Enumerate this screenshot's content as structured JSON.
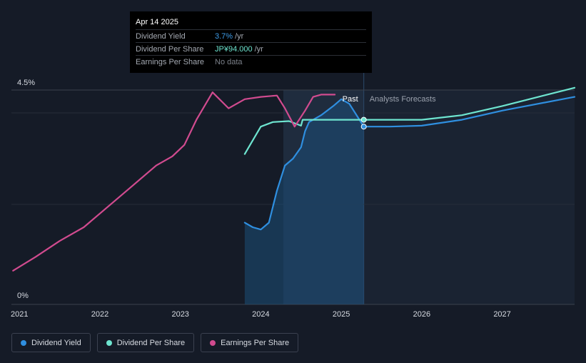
{
  "tooltip": {
    "date": "Apr 14 2025",
    "rows": [
      {
        "label": "Dividend Yield",
        "value": "3.7%",
        "unit": "/yr",
        "color": "#3e9ce8"
      },
      {
        "label": "Dividend Per Share",
        "value": "JP¥94.000",
        "unit": "/yr",
        "color": "#6ee5d0"
      },
      {
        "label": "Earnings Per Share",
        "value": "No data",
        "unit": "",
        "color": "#7b8089"
      }
    ]
  },
  "legend": [
    {
      "label": "Dividend Yield",
      "color": "#2f8fe0",
      "icon": "dividend-yield-dot-icon"
    },
    {
      "label": "Dividend Per Share",
      "color": "#6ee5d0",
      "icon": "dividend-per-share-dot-icon"
    },
    {
      "label": "Earnings Per Share",
      "color": "#d14b8f",
      "icon": "earnings-per-share-dot-icon"
    }
  ],
  "chart_data": {
    "type": "line",
    "y_ticks": [
      "4.5%",
      "0%"
    ],
    "ylim": [
      0,
      4.5
    ],
    "xlim": [
      2020.9,
      2027.9
    ],
    "x_ticks": [
      "2021",
      "2022",
      "2023",
      "2024",
      "2025",
      "2026",
      "2027"
    ],
    "regions": {
      "past_label": "Past",
      "forecast_label": "Analysts Forecasts",
      "split_x": 2025.28,
      "highlight_start": 2024.28
    },
    "grid": true,
    "series": [
      {
        "name": "Dividend Yield",
        "color": "#2f8fe0",
        "area": true,
        "points": [
          [
            2023.8,
            1.6
          ],
          [
            2023.9,
            1.5
          ],
          [
            2024.0,
            1.45
          ],
          [
            2024.1,
            1.6
          ],
          [
            2024.2,
            2.3
          ],
          [
            2024.3,
            2.85
          ],
          [
            2024.4,
            3.0
          ],
          [
            2024.5,
            3.25
          ],
          [
            2024.55,
            3.6
          ],
          [
            2024.6,
            3.8
          ],
          [
            2024.75,
            3.95
          ],
          [
            2024.9,
            4.15
          ],
          [
            2025.0,
            4.3
          ],
          [
            2025.1,
            4.2
          ],
          [
            2025.28,
            3.7
          ],
          [
            2025.6,
            3.7
          ],
          [
            2026.0,
            3.72
          ],
          [
            2026.5,
            3.85
          ],
          [
            2027.0,
            4.05
          ],
          [
            2027.9,
            4.35
          ]
        ]
      },
      {
        "name": "Dividend Per Share",
        "color": "#6ee5d0",
        "points": [
          [
            2023.8,
            3.1
          ],
          [
            2023.9,
            3.4
          ],
          [
            2024.0,
            3.7
          ],
          [
            2024.15,
            3.8
          ],
          [
            2024.35,
            3.82
          ],
          [
            2024.5,
            3.72
          ],
          [
            2024.52,
            3.85
          ],
          [
            2024.8,
            3.85
          ],
          [
            2025.28,
            3.85
          ],
          [
            2025.6,
            3.85
          ],
          [
            2026.0,
            3.85
          ],
          [
            2026.5,
            3.95
          ],
          [
            2027.0,
            4.15
          ],
          [
            2027.9,
            4.55
          ]
        ]
      },
      {
        "name": "Earnings Per Share",
        "color": "#d14b8f",
        "points": [
          [
            2020.92,
            0.55
          ],
          [
            2021.2,
            0.85
          ],
          [
            2021.5,
            1.2
          ],
          [
            2021.8,
            1.5
          ],
          [
            2022.1,
            1.95
          ],
          [
            2022.4,
            2.4
          ],
          [
            2022.7,
            2.85
          ],
          [
            2022.9,
            3.05
          ],
          [
            2023.05,
            3.3
          ],
          [
            2023.2,
            3.85
          ],
          [
            2023.4,
            4.45
          ],
          [
            2023.6,
            4.1
          ],
          [
            2023.8,
            4.3
          ],
          [
            2024.0,
            4.35
          ],
          [
            2024.2,
            4.38
          ],
          [
            2024.3,
            4.1
          ],
          [
            2024.42,
            3.7
          ],
          [
            2024.55,
            4.05
          ],
          [
            2024.65,
            4.35
          ],
          [
            2024.75,
            4.4
          ],
          [
            2024.92,
            4.4
          ]
        ]
      }
    ]
  }
}
